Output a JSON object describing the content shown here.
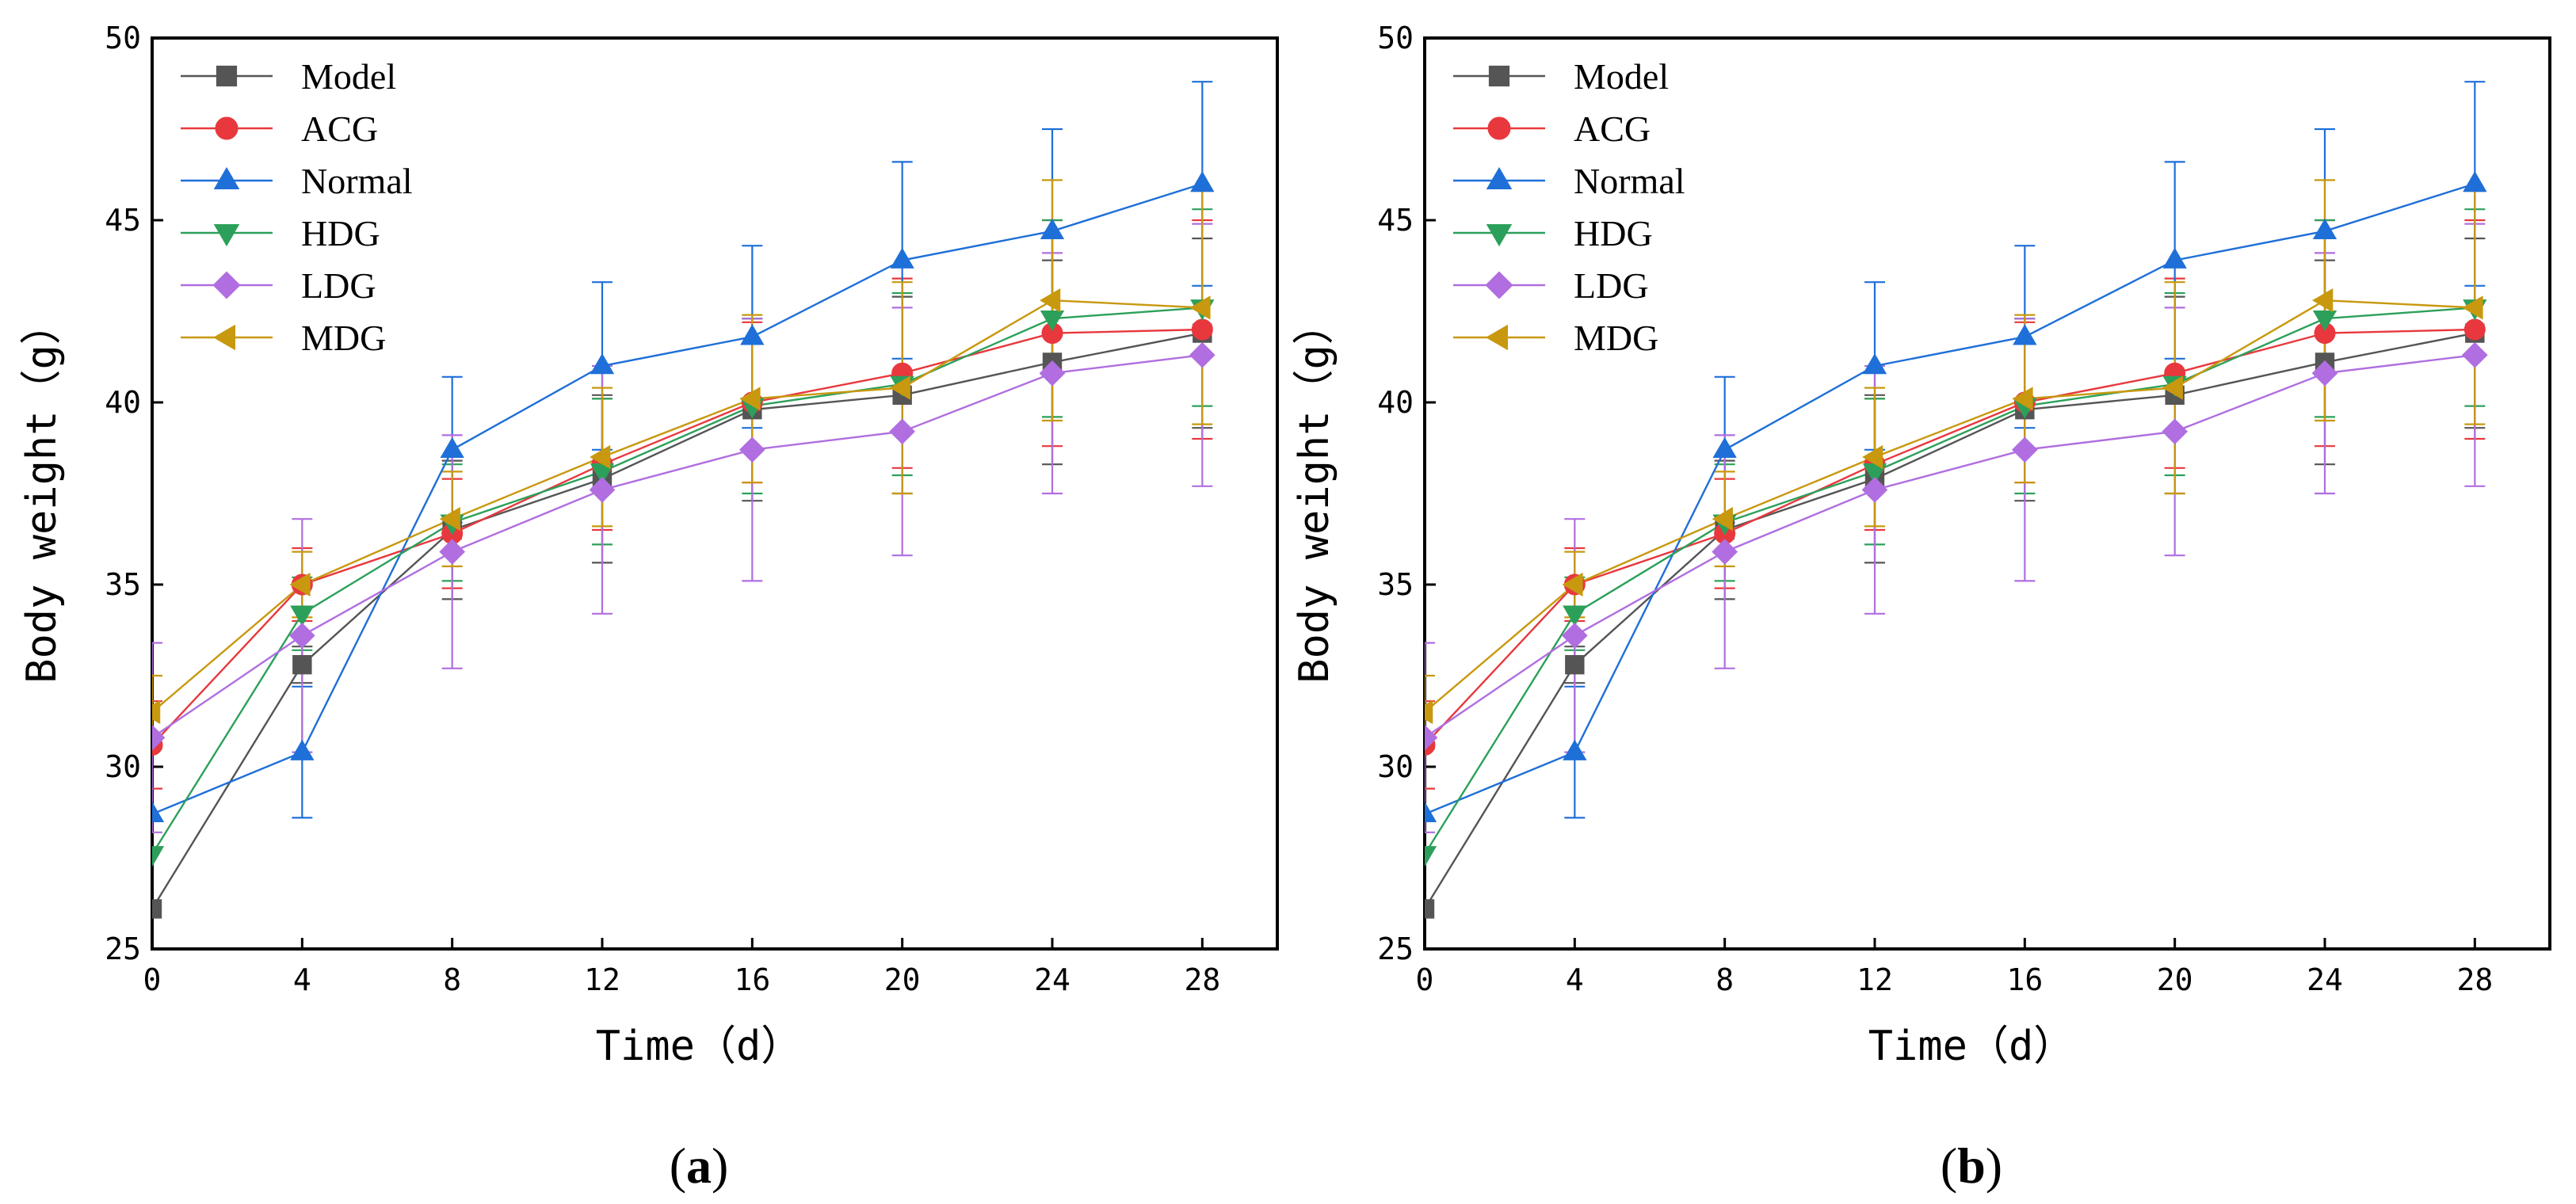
{
  "chart_data": [
    {
      "type": "line",
      "panel_label": {
        "open": "(",
        "letter": "a",
        "close": ")"
      },
      "xlabel": "Time（d）",
      "ylabel": "Body weight（g）",
      "xlim": [
        0,
        30
      ],
      "ylim": [
        25,
        50
      ],
      "xticks": [
        0,
        4,
        8,
        12,
        16,
        20,
        24,
        28
      ],
      "yticks": [
        25,
        30,
        35,
        40,
        45,
        50
      ],
      "x": [
        0,
        4,
        8,
        12,
        16,
        20,
        24,
        28
      ],
      "legend_position": "top-left",
      "series": [
        {
          "name": "Model",
          "color": "#555555",
          "marker": "square",
          "values": [
            26.1,
            32.8,
            36.5,
            37.9,
            39.8,
            40.2,
            41.1,
            41.9
          ],
          "errors": [
            0.0,
            0.5,
            1.9,
            2.3,
            2.5,
            2.7,
            2.8,
            2.6
          ]
        },
        {
          "name": "ACG",
          "color": "#e8383d",
          "marker": "circle",
          "values": [
            30.6,
            35.0,
            36.4,
            38.3,
            40.0,
            40.8,
            41.9,
            42.0
          ],
          "errors": [
            1.2,
            1.0,
            1.5,
            1.8,
            2.2,
            2.6,
            3.1,
            3.0
          ]
        },
        {
          "name": "Normal",
          "color": "#1f6fd8",
          "marker": "triangle-up",
          "values": [
            28.7,
            30.4,
            38.7,
            41.0,
            41.8,
            43.9,
            44.7,
            46.0
          ],
          "errors": [
            0.0,
            1.8,
            2.0,
            2.3,
            2.5,
            2.7,
            2.8,
            2.8
          ]
        },
        {
          "name": "HDG",
          "color": "#2ca05a",
          "marker": "triangle-down",
          "values": [
            27.6,
            34.2,
            36.7,
            38.1,
            39.9,
            40.5,
            42.3,
            42.6
          ],
          "errors": [
            0.0,
            1.0,
            1.6,
            2.0,
            2.4,
            2.5,
            2.7,
            2.7
          ]
        },
        {
          "name": "LDG",
          "color": "#b06ee0",
          "marker": "diamond",
          "values": [
            30.8,
            33.6,
            35.9,
            37.6,
            38.7,
            39.2,
            40.8,
            41.3
          ],
          "errors": [
            2.6,
            3.2,
            3.2,
            3.4,
            3.6,
            3.4,
            3.3,
            3.6
          ]
        },
        {
          "name": "MDG",
          "color": "#c8980e",
          "marker": "triangle-left",
          "values": [
            31.5,
            35.0,
            36.8,
            38.5,
            40.1,
            40.4,
            42.8,
            42.6
          ],
          "errors": [
            1.0,
            0.9,
            1.3,
            1.9,
            2.3,
            2.9,
            3.3,
            3.2
          ]
        }
      ]
    },
    {
      "type": "line",
      "panel_label": {
        "open": "(",
        "letter": "b",
        "close": ")"
      },
      "xlabel": "Time（d）",
      "ylabel": "Body weight（g）",
      "xlim": [
        0,
        30
      ],
      "ylim": [
        25,
        50
      ],
      "xticks": [
        0,
        4,
        8,
        12,
        16,
        20,
        24,
        28
      ],
      "yticks": [
        25,
        30,
        35,
        40,
        45,
        50
      ],
      "x": [
        0,
        4,
        8,
        12,
        16,
        20,
        24,
        28
      ],
      "legend_position": "top-left",
      "series": [
        {
          "name": "Model",
          "color": "#555555",
          "marker": "square",
          "values": [
            26.1,
            32.8,
            36.5,
            37.9,
            39.8,
            40.2,
            41.1,
            41.9
          ],
          "errors": [
            0.0,
            0.5,
            1.9,
            2.3,
            2.5,
            2.7,
            2.8,
            2.6
          ]
        },
        {
          "name": "ACG",
          "color": "#e8383d",
          "marker": "circle",
          "values": [
            30.6,
            35.0,
            36.4,
            38.3,
            40.0,
            40.8,
            41.9,
            42.0
          ],
          "errors": [
            1.2,
            1.0,
            1.5,
            1.8,
            2.2,
            2.6,
            3.1,
            3.0
          ]
        },
        {
          "name": "Normal",
          "color": "#1f6fd8",
          "marker": "triangle-up",
          "values": [
            28.7,
            30.4,
            38.7,
            41.0,
            41.8,
            43.9,
            44.7,
            46.0
          ],
          "errors": [
            0.0,
            1.8,
            2.0,
            2.3,
            2.5,
            2.7,
            2.8,
            2.8
          ]
        },
        {
          "name": "HDG",
          "color": "#2ca05a",
          "marker": "triangle-down",
          "values": [
            27.6,
            34.2,
            36.7,
            38.1,
            39.9,
            40.5,
            42.3,
            42.6
          ],
          "errors": [
            0.0,
            1.0,
            1.6,
            2.0,
            2.4,
            2.5,
            2.7,
            2.7
          ]
        },
        {
          "name": "LDG",
          "color": "#b06ee0",
          "marker": "diamond",
          "values": [
            30.8,
            33.6,
            35.9,
            37.6,
            38.7,
            39.2,
            40.8,
            41.3
          ],
          "errors": [
            2.6,
            3.2,
            3.2,
            3.4,
            3.6,
            3.4,
            3.3,
            3.6
          ]
        },
        {
          "name": "MDG",
          "color": "#c8980e",
          "marker": "triangle-left",
          "values": [
            31.5,
            35.0,
            36.8,
            38.5,
            40.1,
            40.4,
            42.8,
            42.6
          ],
          "errors": [
            1.0,
            0.9,
            1.3,
            1.9,
            2.3,
            2.9,
            3.3,
            3.2
          ]
        }
      ]
    }
  ]
}
